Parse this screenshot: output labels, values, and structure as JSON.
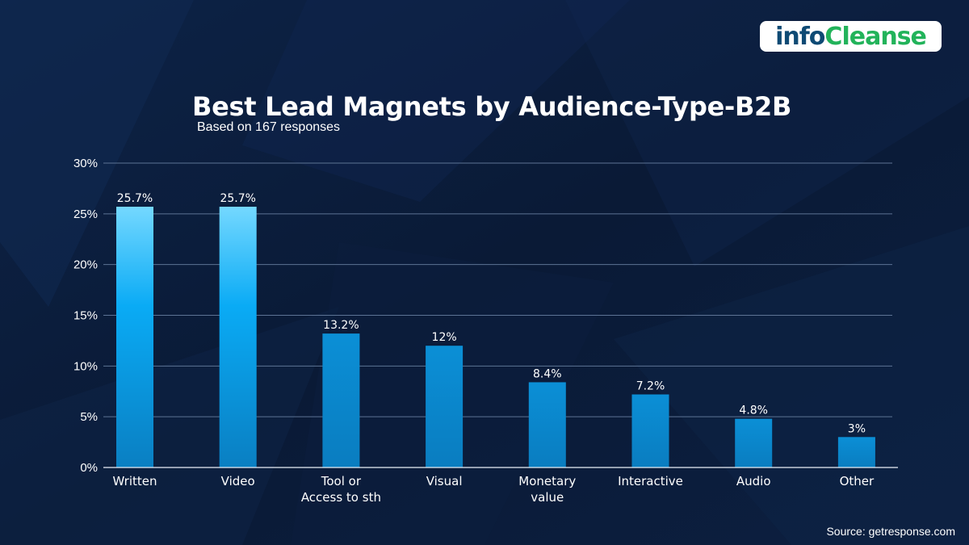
{
  "brand": {
    "logo_info": "info",
    "logo_cleanse": "Cleanse",
    "info_color": "#0e4a74",
    "cleanse_color": "#22b35a"
  },
  "header": {
    "title": "Best Lead Magnets by Audience-Type-B2B",
    "subtitle": "Based on 167 responses"
  },
  "footer": {
    "source": "Source: getresponse.com"
  },
  "colors": {
    "background": "#0b1c3a",
    "bar_top_highlight": "#6fd4ff",
    "bar_mid": "#0aa8f2",
    "bar_bottom": "#0a80c4",
    "bar_plain": "#0c85cc",
    "gridline": "#5d7394"
  },
  "chart_data": {
    "type": "bar",
    "title": "Best Lead Magnets by Audience-Type-B2B",
    "subtitle": "Based on 167 responses",
    "xlabel": "",
    "ylabel": "",
    "ylim": [
      0,
      30
    ],
    "yticks": [
      0,
      5,
      10,
      15,
      20,
      25,
      30
    ],
    "ytick_labels": [
      "0%",
      "5%",
      "10%",
      "15%",
      "20%",
      "25%",
      "30%"
    ],
    "grid": true,
    "categories": [
      [
        "Written"
      ],
      [
        "Video"
      ],
      [
        "Tool or",
        "Access to sth"
      ],
      [
        "Visual"
      ],
      [
        "Monetary",
        "value"
      ],
      [
        "Interactive"
      ],
      [
        "Audio"
      ],
      [
        "Other"
      ]
    ],
    "values": [
      25.7,
      25.7,
      13.2,
      12,
      8.4,
      7.2,
      4.8,
      3
    ],
    "value_labels": [
      "25.7%",
      "25.7%",
      "13.2%",
      "12%",
      "8.4%",
      "7.2%",
      "4.8%",
      "3%"
    ],
    "highlighted": [
      true,
      true,
      false,
      false,
      false,
      false,
      false,
      false
    ]
  }
}
